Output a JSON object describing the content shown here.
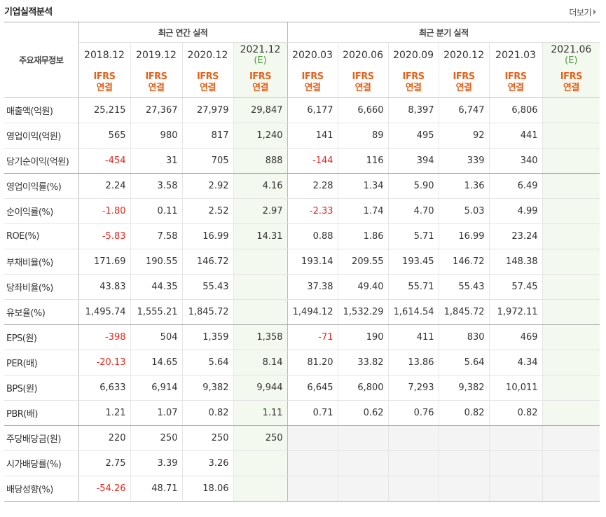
{
  "header": {
    "title": "기업실적분석",
    "more_label": "더보기"
  },
  "table": {
    "corner_label": "주요재무정보",
    "annual_group": "최근 연간 실적",
    "quarter_group": "최근 분기 실적",
    "annual_periods": [
      {
        "period": "2018.12",
        "sub": "",
        "type1": "IFRS",
        "type2": "연결"
      },
      {
        "period": "2019.12",
        "sub": "",
        "type1": "IFRS",
        "type2": "연결"
      },
      {
        "period": "2020.12",
        "sub": "",
        "type1": "IFRS",
        "type2": "연결"
      },
      {
        "period": "2021.12",
        "sub": "(E)",
        "type1": "IFRS",
        "type2": "연결"
      }
    ],
    "quarter_periods": [
      {
        "period": "2020.03",
        "sub": "",
        "type1": "IFRS",
        "type2": "연결"
      },
      {
        "period": "2020.06",
        "sub": "",
        "type1": "IFRS",
        "type2": "연결"
      },
      {
        "period": "2020.09",
        "sub": "",
        "type1": "IFRS",
        "type2": "연결"
      },
      {
        "period": "2020.12",
        "sub": "",
        "type1": "IFRS",
        "type2": "연결"
      },
      {
        "period": "2021.03",
        "sub": "",
        "type1": "IFRS",
        "type2": "연결"
      },
      {
        "period": "2021.06",
        "sub": "(E)",
        "type1": "IFRS",
        "type2": "연결"
      }
    ],
    "rows": [
      {
        "label": "매출액(억원)",
        "values": [
          "25,215",
          "27,367",
          "27,979",
          "29,847",
          "6,177",
          "6,660",
          "8,397",
          "6,747",
          "6,806",
          ""
        ]
      },
      {
        "label": "영업이익(억원)",
        "values": [
          "565",
          "980",
          "817",
          "1,240",
          "141",
          "89",
          "495",
          "92",
          "441",
          ""
        ]
      },
      {
        "label": "당기순이익(억원)",
        "values": [
          "-454",
          "31",
          "705",
          "888",
          "-144",
          "116",
          "394",
          "339",
          "340",
          ""
        ]
      },
      {
        "label": "영업이익률(%)",
        "values": [
          "2.24",
          "3.58",
          "2.92",
          "4.16",
          "2.28",
          "1.34",
          "5.90",
          "1.36",
          "6.49",
          ""
        ]
      },
      {
        "label": "순이익률(%)",
        "values": [
          "-1.80",
          "0.11",
          "2.52",
          "2.97",
          "-2.33",
          "1.74",
          "4.70",
          "5.03",
          "4.99",
          ""
        ]
      },
      {
        "label": "ROE(%)",
        "values": [
          "-5.83",
          "7.58",
          "16.99",
          "14.31",
          "0.88",
          "1.86",
          "5.71",
          "16.99",
          "23.24",
          ""
        ]
      },
      {
        "label": "부채비율(%)",
        "values": [
          "171.69",
          "190.55",
          "146.72",
          "",
          "193.14",
          "209.55",
          "193.45",
          "146.72",
          "148.38",
          ""
        ]
      },
      {
        "label": "당좌비율(%)",
        "values": [
          "43.83",
          "44.35",
          "55.43",
          "",
          "37.38",
          "49.40",
          "55.71",
          "55.43",
          "57.45",
          ""
        ]
      },
      {
        "label": "유보율(%)",
        "values": [
          "1,495.74",
          "1,555.21",
          "1,845.72",
          "",
          "1,494.12",
          "1,532.29",
          "1,614.54",
          "1,845.72",
          "1,972.11",
          ""
        ]
      },
      {
        "label": "EPS(원)",
        "values": [
          "-398",
          "504",
          "1,359",
          "1,358",
          "-71",
          "190",
          "411",
          "830",
          "469",
          ""
        ]
      },
      {
        "label": "PER(배)",
        "values": [
          "-20.13",
          "14.65",
          "5.64",
          "8.14",
          "81.20",
          "33.82",
          "13.86",
          "5.64",
          "4.34",
          ""
        ]
      },
      {
        "label": "BPS(원)",
        "values": [
          "6,633",
          "6,914",
          "9,382",
          "9,944",
          "6,645",
          "6,800",
          "7,293",
          "9,382",
          "10,011",
          ""
        ]
      },
      {
        "label": "PBR(배)",
        "values": [
          "1.21",
          "1.07",
          "0.82",
          "1.11",
          "0.71",
          "0.62",
          "0.76",
          "0.82",
          "0.82",
          ""
        ]
      },
      {
        "label": "주당배당금(원)",
        "values": [
          "220",
          "250",
          "250",
          "250",
          "",
          "",
          "",
          "",
          "",
          ""
        ]
      },
      {
        "label": "시가배당률(%)",
        "values": [
          "2.75",
          "3.39",
          "3.26",
          "",
          "",
          "",
          "",
          "",
          "",
          ""
        ]
      },
      {
        "label": "배당성향(%)",
        "values": [
          "-54.26",
          "48.71",
          "18.06",
          "",
          "",
          "",
          "",
          "",
          "",
          ""
        ]
      }
    ]
  }
}
